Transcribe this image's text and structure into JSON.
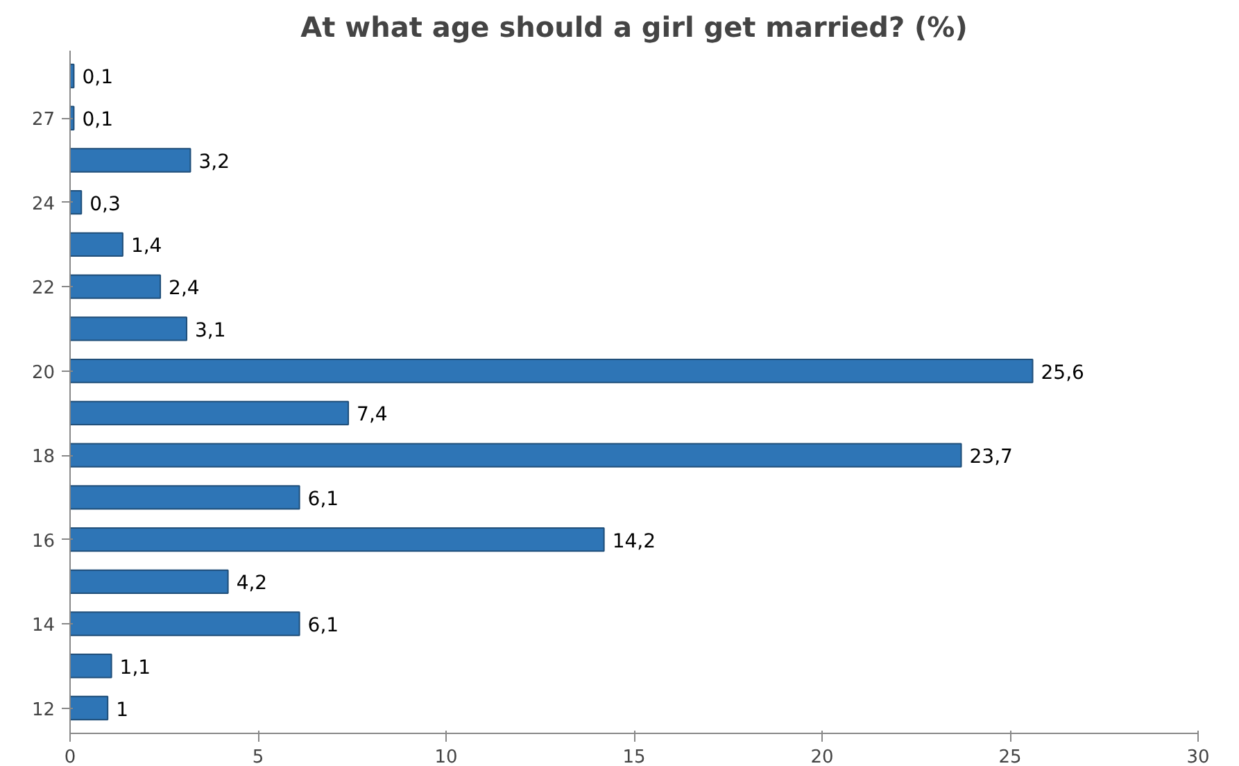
{
  "chart_data": {
    "type": "bar",
    "orientation": "horizontal",
    "title": "At what age should a girl get married? (%)",
    "categories": [
      null,
      "27",
      null,
      "24",
      null,
      "22",
      null,
      "20",
      null,
      "18",
      null,
      "16",
      null,
      "14",
      null,
      "12"
    ],
    "values": [
      0.1,
      0.1,
      3.2,
      0.3,
      1.4,
      2.4,
      3.1,
      25.6,
      7.4,
      23.7,
      6.1,
      14.2,
      4.2,
      6.1,
      1.1,
      1
    ],
    "value_labels": [
      "0,1",
      "0,1",
      "3,2",
      "0,3",
      "1,4",
      "2,4",
      "3,1",
      "25,6",
      "7,4",
      "23,7",
      "6,1",
      "14,2",
      "4,2",
      "6,1",
      "1,1",
      "1"
    ],
    "color": "#2e75b6",
    "xlim": [
      0,
      30
    ],
    "xticks": [
      0,
      5,
      10,
      15,
      20,
      25,
      30
    ],
    "grid": false
  }
}
